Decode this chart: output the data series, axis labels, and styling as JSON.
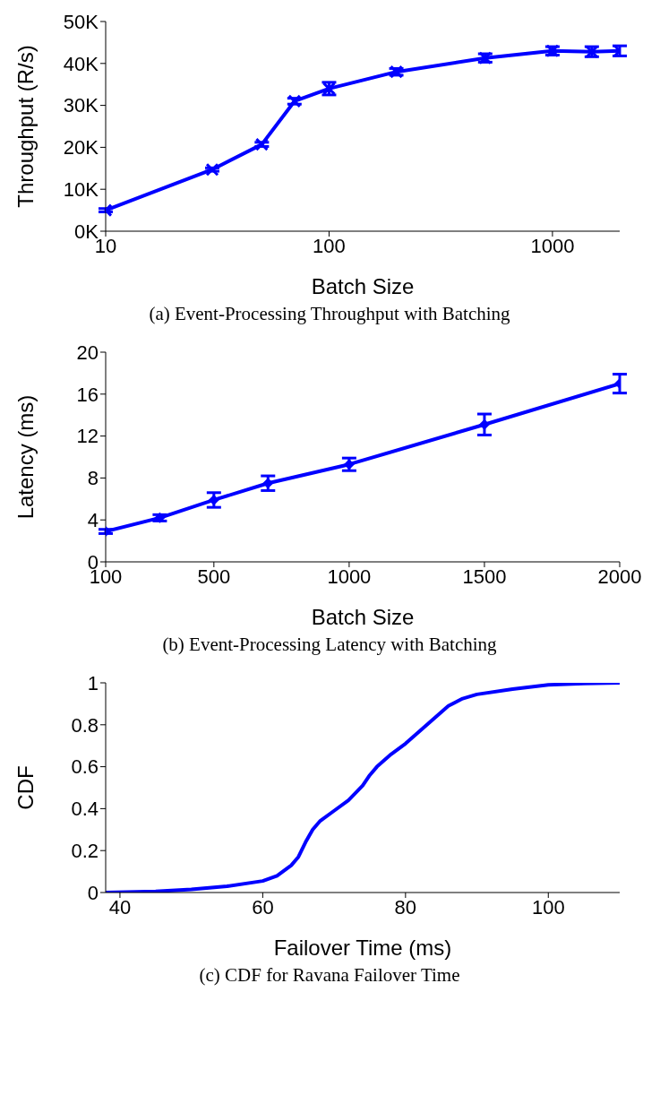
{
  "chart_data": [
    {
      "type": "line",
      "title": "(a) Event-Processing Throughput with Batching",
      "xlabel": "Batch Size",
      "ylabel": "Throughput (R/s)",
      "log": "x",
      "marker": "cross",
      "color": "#0000ff",
      "x": [
        10,
        30,
        50,
        70,
        100,
        200,
        500,
        1000,
        1500,
        2000
      ],
      "values": [
        5000,
        14700,
        20700,
        31000,
        34000,
        38000,
        41300,
        43000,
        42800,
        43000
      ],
      "errors": [
        400,
        400,
        500,
        700,
        1500,
        800,
        1000,
        1000,
        1200,
        1200
      ],
      "xlim": [
        10,
        2000
      ],
      "xticks": [
        10,
        100,
        1000
      ],
      "ylim": [
        0,
        50000
      ],
      "yticks": [
        {
          "value": 0,
          "label": "0K"
        },
        {
          "value": 10000,
          "label": "10K"
        },
        {
          "value": 20000,
          "label": "20K"
        },
        {
          "value": 30000,
          "label": "30K"
        },
        {
          "value": 40000,
          "label": "40K"
        },
        {
          "value": 50000,
          "label": "50K"
        }
      ]
    },
    {
      "type": "line",
      "title": "(b) Event-Processing Latency with Batching",
      "xlabel": "Batch Size",
      "ylabel": "Latency (ms)",
      "marker": "diamond",
      "color": "#0000ff",
      "x": [
        100,
        300,
        500,
        700,
        1000,
        1500,
        2000
      ],
      "values": [
        2.9,
        4.2,
        5.9,
        7.5,
        9.3,
        13.1,
        17.0
      ],
      "errors": [
        0.2,
        0.3,
        0.7,
        0.7,
        0.6,
        1.0,
        0.9
      ],
      "xlim": [
        100,
        2000
      ],
      "xticks": [
        100,
        500,
        1000,
        1500,
        2000
      ],
      "ylim": [
        0,
        20
      ],
      "yticks": [
        0,
        4,
        8,
        12,
        16,
        20
      ]
    },
    {
      "type": "line",
      "title": "(c) CDF for Ravana Failover Time",
      "xlabel": "Failover Time (ms)",
      "ylabel": "CDF",
      "color": "#0000ff",
      "x": [
        38,
        45,
        50,
        55,
        60,
        62,
        64,
        65,
        66,
        67,
        68,
        70,
        72,
        74,
        75,
        76,
        78,
        80,
        82,
        84,
        86,
        88,
        90,
        95,
        100,
        105,
        110
      ],
      "values": [
        0,
        0.005,
        0.015,
        0.03,
        0.055,
        0.08,
        0.13,
        0.17,
        0.24,
        0.3,
        0.34,
        0.39,
        0.44,
        0.51,
        0.56,
        0.6,
        0.66,
        0.71,
        0.77,
        0.83,
        0.89,
        0.925,
        0.945,
        0.97,
        0.99,
        0.997,
        1
      ],
      "xlim": [
        38,
        110
      ],
      "xticks": [
        40,
        60,
        80,
        100
      ],
      "ylim": [
        0,
        1
      ],
      "yticks": [
        0,
        0.2,
        0.4,
        0.6,
        0.8,
        1
      ]
    }
  ]
}
